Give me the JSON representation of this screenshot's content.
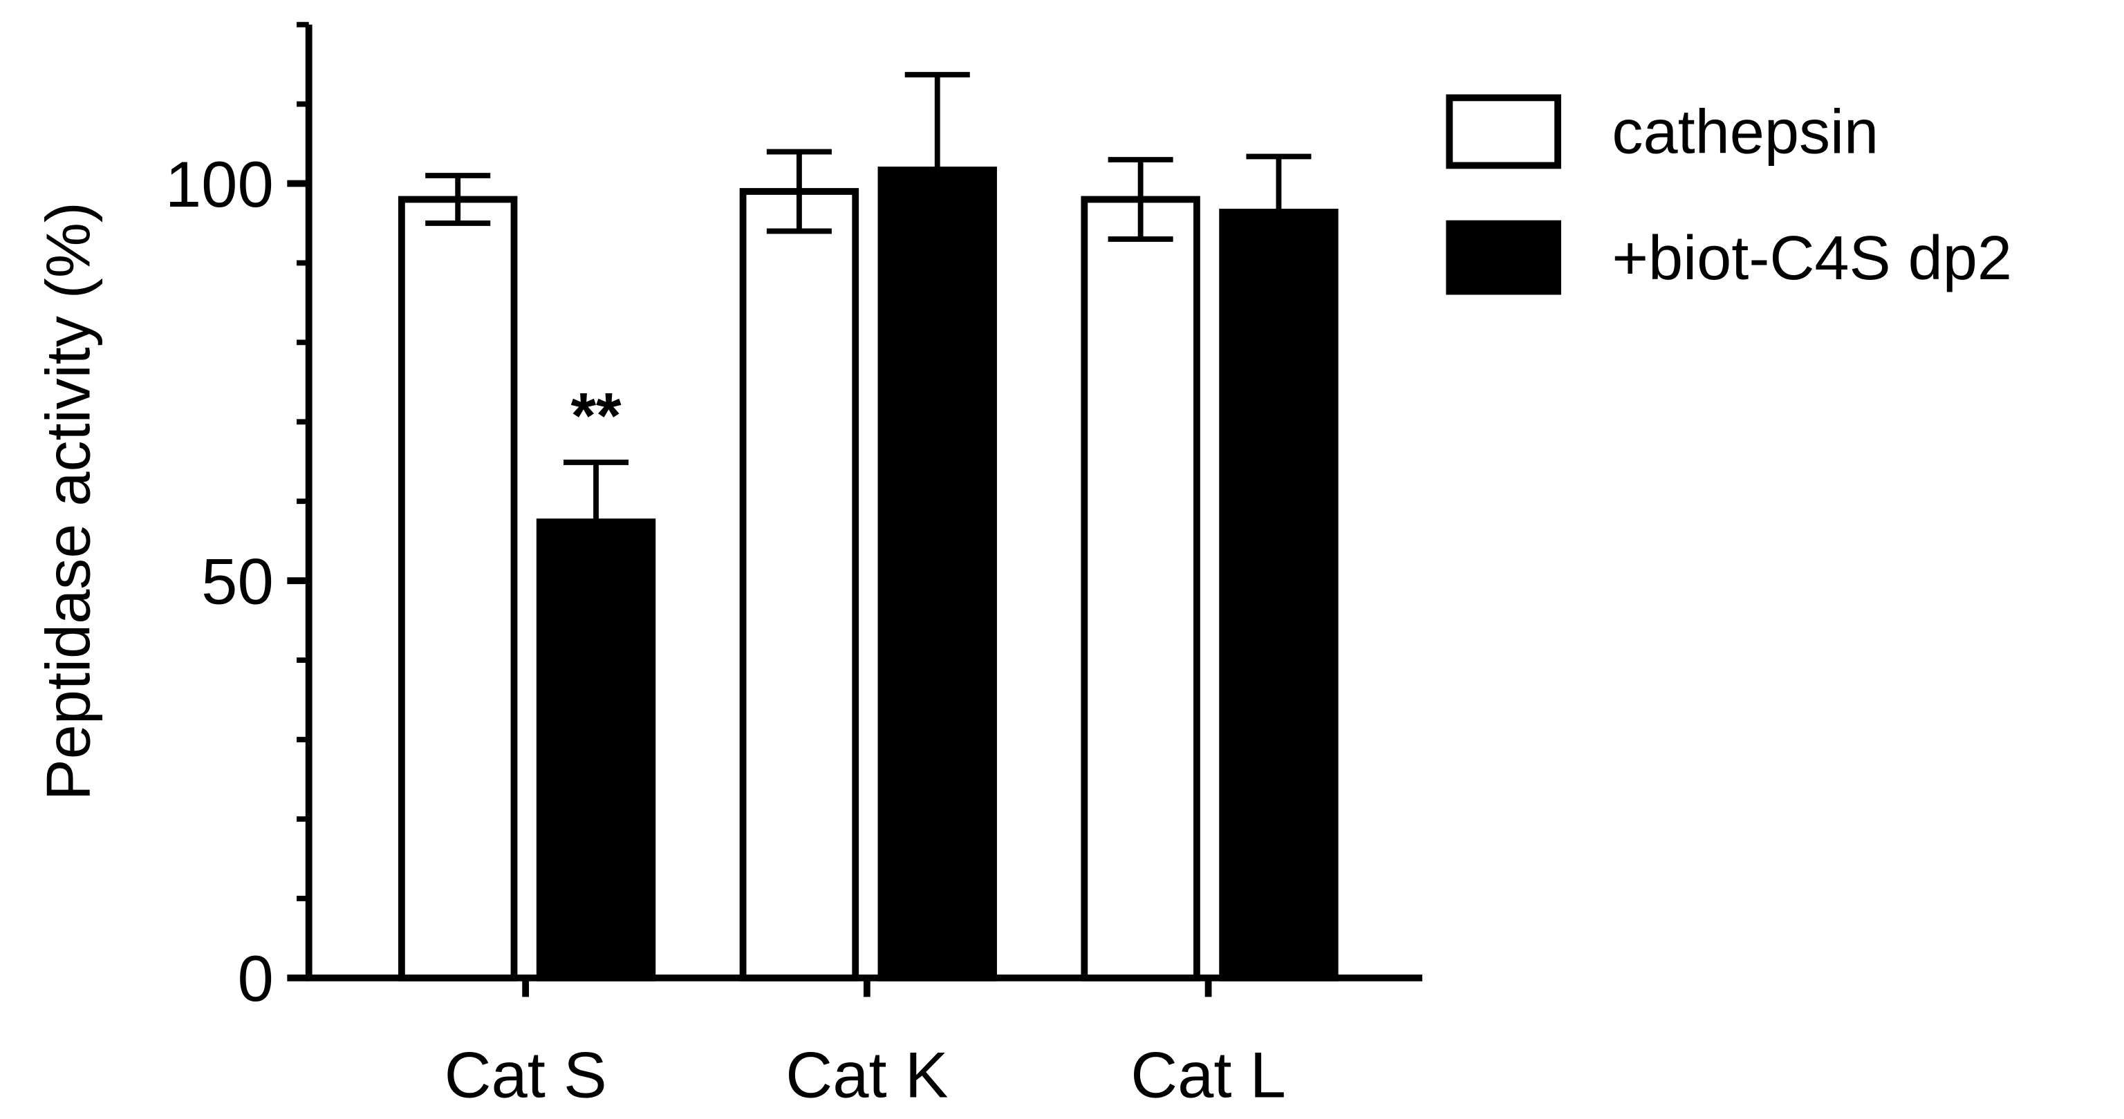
{
  "chart_data": {
    "type": "bar",
    "y_label": "Peptidase activity (%)",
    "categories": [
      "Cat S",
      "Cat K",
      "Cat L"
    ],
    "series": [
      {
        "name": "cathepsin",
        "color": "#ffffff",
        "values": [
          98,
          99,
          98
        ],
        "errors": [
          3,
          5,
          5
        ]
      },
      {
        "name": "+biot-C4S dp2",
        "color": "#000000",
        "values": [
          57.4,
          101.7,
          96.4
        ],
        "errors": [
          7.5,
          12,
          7
        ]
      }
    ],
    "annotations": [
      {
        "text": "**",
        "category": 0,
        "series": 1
      }
    ],
    "ylim": [
      0,
      120
    ],
    "yticks": [
      0,
      50,
      100
    ],
    "yminor_ticks": [
      10,
      20,
      30,
      40,
      60,
      70,
      80,
      90,
      110,
      120
    ],
    "legend": "top-right"
  }
}
